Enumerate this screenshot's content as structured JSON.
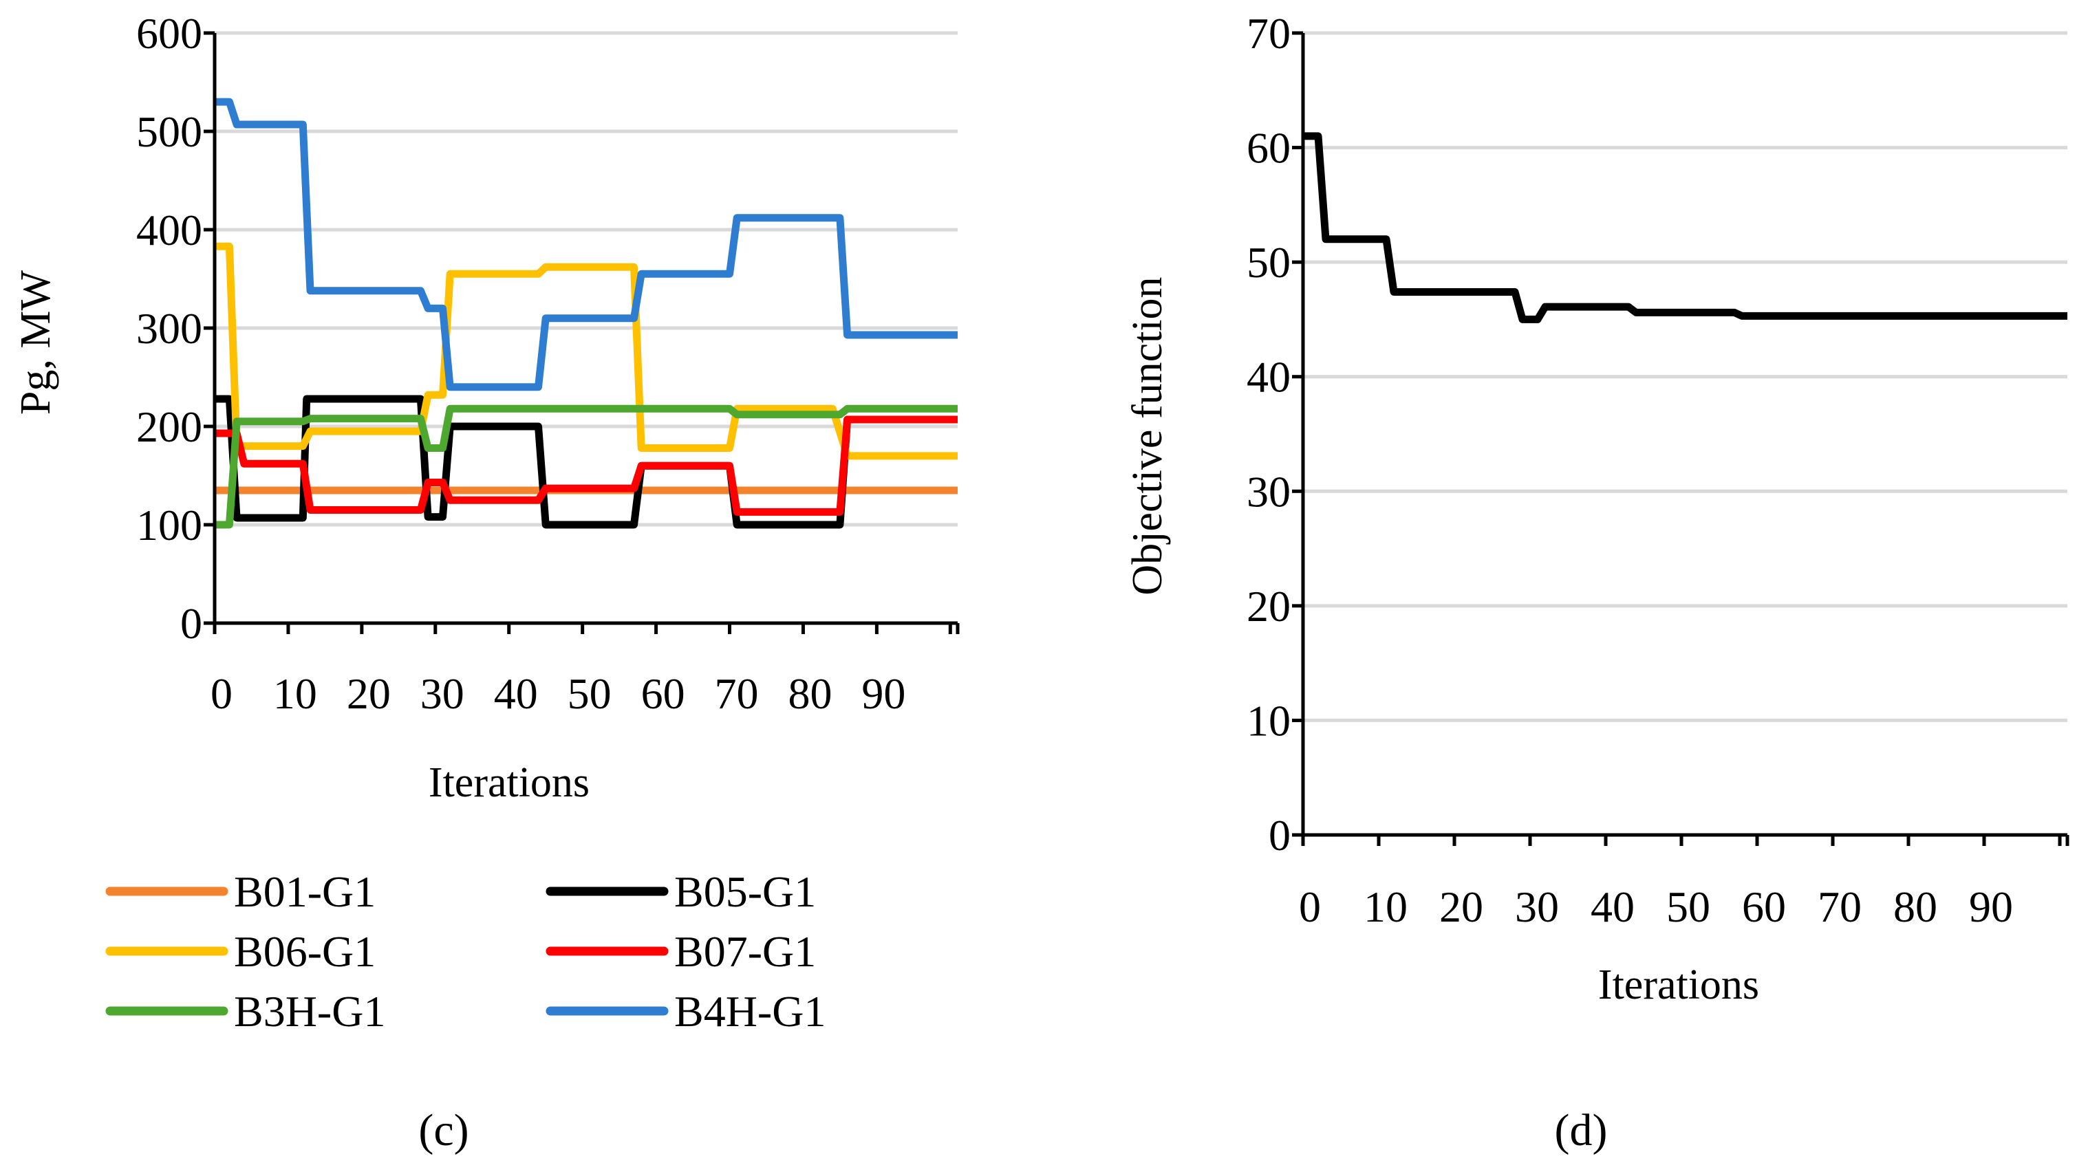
{
  "chart_data": [
    {
      "panel_label": "(c)",
      "type": "line",
      "xlabel": "Iterations",
      "ylabel": "Pg,  MW",
      "ylim": [
        0,
        600
      ],
      "yticks": [
        0,
        100,
        200,
        300,
        400,
        500,
        600
      ],
      "xlim": [
        0,
        101
      ],
      "xticks": [
        0,
        10,
        20,
        30,
        40,
        50,
        60,
        70,
        80,
        90
      ],
      "grid": "horizontal",
      "legend": "bottom",
      "series": [
        {
          "name": "B01-G1",
          "color": "#F4832E",
          "points": [
            [
              0,
              135
            ],
            [
              101,
              135
            ]
          ]
        },
        {
          "name": "B05-G1",
          "color": "#000000",
          "points": [
            [
              0,
              228
            ],
            [
              2,
              228
            ],
            [
              3,
              107
            ],
            [
              12,
              107
            ],
            [
              12.5,
              228
            ],
            [
              28,
              228
            ],
            [
              29,
              108
            ],
            [
              31,
              108
            ],
            [
              32,
              200
            ],
            [
              44,
              200
            ],
            [
              45,
              100
            ],
            [
              57,
              100
            ],
            [
              58,
              160
            ],
            [
              70,
              160
            ],
            [
              71,
              100
            ],
            [
              85,
              100
            ],
            [
              86,
              207
            ],
            [
              101,
              207
            ]
          ]
        },
        {
          "name": "B06-G1",
          "color": "#FFC000",
          "points": [
            [
              0,
              383
            ],
            [
              2,
              383
            ],
            [
              3,
              180
            ],
            [
              12,
              180
            ],
            [
              13,
              195
            ],
            [
              28,
              195
            ],
            [
              29,
              232
            ],
            [
              31,
              232
            ],
            [
              32,
              355
            ],
            [
              44,
              355
            ],
            [
              45,
              362
            ],
            [
              57,
              362
            ],
            [
              58,
              178
            ],
            [
              70,
              178
            ],
            [
              71,
              218
            ],
            [
              84,
              218
            ],
            [
              86,
              170
            ],
            [
              101,
              170
            ]
          ]
        },
        {
          "name": "B07-G1",
          "color": "#FF0000",
          "points": [
            [
              0,
              193
            ],
            [
              3,
              193
            ],
            [
              4,
              162
            ],
            [
              12,
              162
            ],
            [
              13,
              115
            ],
            [
              28,
              115
            ],
            [
              29,
              143
            ],
            [
              31,
              143
            ],
            [
              32,
              125
            ],
            [
              44,
              125
            ],
            [
              45,
              137
            ],
            [
              57,
              137
            ],
            [
              58,
              160
            ],
            [
              70,
              160
            ],
            [
              71,
              113
            ],
            [
              85,
              113
            ],
            [
              86,
              207
            ],
            [
              101,
              207
            ]
          ]
        },
        {
          "name": "B3H-G1",
          "color": "#4EA72E",
          "points": [
            [
              0,
              100
            ],
            [
              2,
              100
            ],
            [
              3,
              205
            ],
            [
              12,
              205
            ],
            [
              13,
              208
            ],
            [
              28,
              208
            ],
            [
              29,
              178
            ],
            [
              31,
              178
            ],
            [
              32,
              218
            ],
            [
              70,
              218
            ],
            [
              71,
              212
            ],
            [
              85,
              212
            ],
            [
              86,
              218
            ],
            [
              101,
              218
            ]
          ]
        },
        {
          "name": "B4H-G1",
          "color": "#2E7DD1",
          "points": [
            [
              0,
              530
            ],
            [
              2,
              530
            ],
            [
              3,
              507
            ],
            [
              12,
              507
            ],
            [
              13,
              338
            ],
            [
              28,
              338
            ],
            [
              29,
              320
            ],
            [
              31,
              320
            ],
            [
              32,
              240
            ],
            [
              44,
              240
            ],
            [
              45,
              310
            ],
            [
              57,
              310
            ],
            [
              58,
              355
            ],
            [
              70,
              355
            ],
            [
              71,
              412
            ],
            [
              85,
              412
            ],
            [
              86,
              293
            ],
            [
              101,
              293
            ]
          ]
        }
      ]
    },
    {
      "panel_label": "(d)",
      "type": "line",
      "xlabel": "Iterations",
      "ylabel": "Objective function",
      "ylim": [
        0,
        70
      ],
      "yticks": [
        0,
        10,
        20,
        30,
        40,
        50,
        60,
        70
      ],
      "xlim": [
        0,
        101
      ],
      "xticks": [
        0,
        10,
        20,
        30,
        40,
        50,
        60,
        70,
        80,
        90
      ],
      "grid": "horizontal",
      "series": [
        {
          "name": "Objective function",
          "color": "#000000",
          "points": [
            [
              0,
              61
            ],
            [
              2,
              61
            ],
            [
              3,
              52
            ],
            [
              11,
              52
            ],
            [
              12,
              47.4
            ],
            [
              28,
              47.4
            ],
            [
              29,
              45
            ],
            [
              31,
              45
            ],
            [
              32,
              46.1
            ],
            [
              43,
              46.1
            ],
            [
              44,
              45.6
            ],
            [
              57,
              45.6
            ],
            [
              58,
              45.3
            ],
            [
              101,
              45.3
            ]
          ]
        }
      ]
    }
  ]
}
